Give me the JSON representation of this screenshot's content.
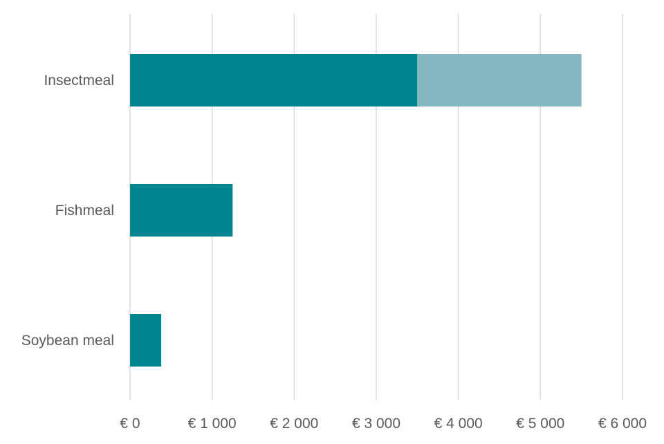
{
  "chart_data": {
    "type": "bar",
    "orientation": "horizontal",
    "stacked": true,
    "categories": [
      "Insectmeal",
      "Fishmeal",
      "Soybean meal"
    ],
    "series": [
      {
        "values": [
          3500,
          1250,
          380
        ],
        "color": "#008591"
      },
      {
        "values": [
          2000,
          0,
          0
        ],
        "color": "#85b7c0"
      }
    ],
    "xlim": [
      0,
      6000
    ],
    "xticks": [
      0,
      1000,
      2000,
      3000,
      4000,
      5000,
      6000
    ],
    "xtick_labels": [
      "€ 0",
      "€ 1 000",
      "€ 2 000",
      "€ 3 000",
      "€ 4 000",
      "€ 5 000",
      "€ 6 000"
    ],
    "grid": true,
    "legend": "none"
  }
}
